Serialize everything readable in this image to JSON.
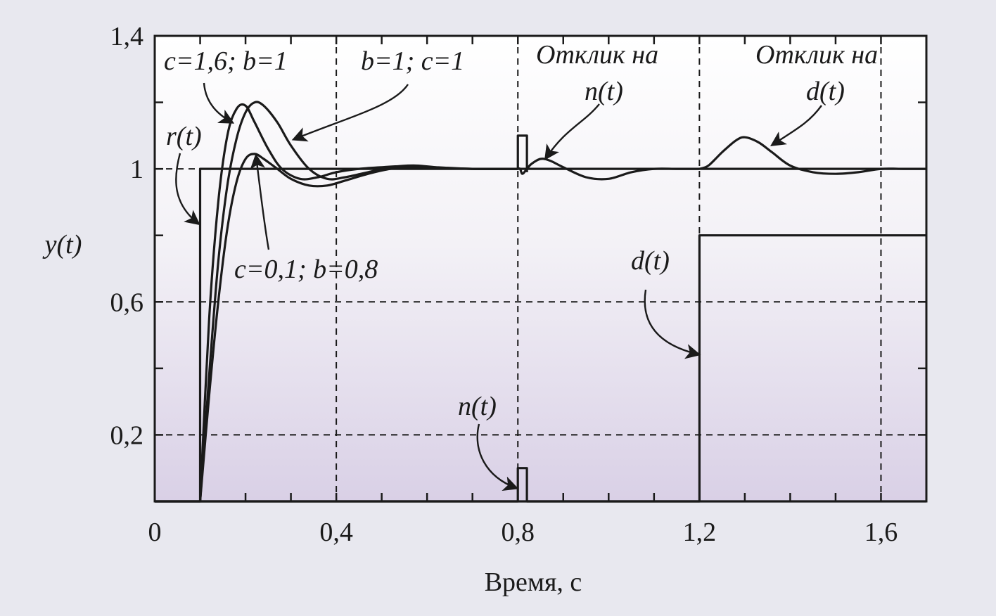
{
  "chart_data": {
    "type": "line",
    "title": "",
    "xlabel": "Время, с",
    "ylabel": "y(t)",
    "xlim": [
      0,
      1.7
    ],
    "ylim": [
      0,
      1.4
    ],
    "x_ticks": [
      0,
      0.4,
      0.8,
      1.2,
      1.6
    ],
    "x_tick_labels": [
      "0",
      "0,4",
      "0,8",
      "1,2",
      "1,6"
    ],
    "y_ticks": [
      0.2,
      0.6,
      1,
      1.4
    ],
    "y_tick_labels": [
      "0,2",
      "0,6",
      "1",
      "1,4"
    ],
    "grid": true,
    "series": [
      {
        "name": "r(t)",
        "x": [
          0,
          0.1,
          0.1,
          1.7
        ],
        "y": [
          0,
          0,
          1,
          1
        ]
      },
      {
        "name": "c=1,6; b=1",
        "x": [
          0.1,
          0.12,
          0.14,
          0.16,
          0.18,
          0.2,
          0.22,
          0.25,
          0.28,
          0.32,
          0.36,
          0.4,
          0.45,
          0.5,
          0.55,
          0.6,
          0.7,
          0.8
        ],
        "y": [
          0,
          0.55,
          0.9,
          1.1,
          1.18,
          1.19,
          1.14,
          1.06,
          1.0,
          0.97,
          0.975,
          0.99,
          1.0,
          1.005,
          1.008,
          1.003,
          1.0,
          1.0
        ]
      },
      {
        "name": "b=1; c=1",
        "x": [
          0.1,
          0.12,
          0.14,
          0.16,
          0.18,
          0.2,
          0.22,
          0.24,
          0.27,
          0.3,
          0.34,
          0.38,
          0.42,
          0.47,
          0.52,
          0.57,
          0.62,
          0.7,
          0.8
        ],
        "y": [
          0,
          0.38,
          0.72,
          0.95,
          1.09,
          1.17,
          1.2,
          1.19,
          1.14,
          1.07,
          1.0,
          0.97,
          0.975,
          0.99,
          1.005,
          1.01,
          1.005,
          1.0,
          1.0
        ]
      },
      {
        "name": "c=0,1; b=0,8",
        "x": [
          0.1,
          0.12,
          0.14,
          0.16,
          0.18,
          0.2,
          0.22,
          0.24,
          0.27,
          0.3,
          0.34,
          0.38,
          0.42,
          0.47,
          0.52,
          0.57,
          0.62,
          0.7,
          0.8
        ],
        "y": [
          0,
          0.32,
          0.6,
          0.82,
          0.96,
          1.03,
          1.045,
          1.03,
          1.0,
          0.97,
          0.95,
          0.95,
          0.965,
          0.985,
          1.0,
          1.005,
          1.003,
          1.0,
          1.0
        ]
      },
      {
        "name": "Отклик на n(t)",
        "x": [
          0.8,
          0.805,
          0.81,
          0.82,
          0.83,
          0.85,
          0.87,
          0.9,
          0.95,
          1.0,
          1.05,
          1.1,
          1.15,
          1.2
        ],
        "y": [
          1.0,
          1.0,
          0.985,
          1.0,
          1.015,
          1.03,
          1.025,
          1.005,
          0.975,
          0.97,
          0.99,
          1.0,
          1.0,
          1.0
        ]
      },
      {
        "name": "Отклик на d(t)",
        "x": [
          1.2,
          1.22,
          1.25,
          1.28,
          1.3,
          1.33,
          1.36,
          1.4,
          1.45,
          1.5,
          1.55,
          1.6,
          1.65,
          1.7
        ],
        "y": [
          1.0,
          1.01,
          1.05,
          1.085,
          1.095,
          1.08,
          1.05,
          1.01,
          0.99,
          0.985,
          0.99,
          1.0,
          1.0,
          1.0
        ]
      },
      {
        "name": "n(t)",
        "x": [
          0,
          0.8,
          0.8,
          0.82,
          0.82,
          1.7
        ],
        "y": [
          0,
          0,
          0.1,
          0.1,
          0,
          0
        ]
      },
      {
        "name": "d(t)",
        "x": [
          0,
          1.2,
          1.2,
          1.7
        ],
        "y": [
          0,
          0,
          0.8,
          0.8
        ]
      }
    ],
    "annotations": [
      {
        "text": "c=1,6;  b=1"
      },
      {
        "text": "b=1; c=1"
      },
      {
        "text": "r(t)"
      },
      {
        "text": "c=0,1; b=0,8"
      },
      {
        "text": "Отклик на"
      },
      {
        "text": "n(t)"
      },
      {
        "text": "Отклик на"
      },
      {
        "text": "d(t)"
      },
      {
        "text": "d(t)"
      },
      {
        "text": "n(t)"
      }
    ]
  }
}
